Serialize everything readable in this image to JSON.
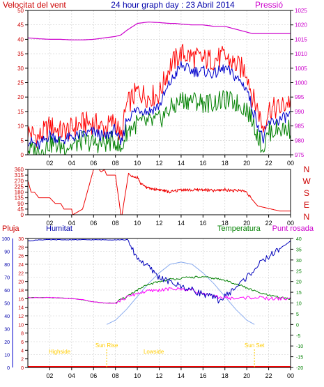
{
  "header": {
    "title": "24 hour graph day : 23 Abril 2014",
    "left_label": "Velocitat del vent",
    "right_label": "Pressió"
  },
  "colors": {
    "wind_gust": "#ff0000",
    "wind_avg": "#0000cc",
    "wind_low": "#008000",
    "pressure": "#cc00cc",
    "direction": "#ee0000",
    "humidity": "#0000bb",
    "temperature": "#008000",
    "dewpoint": "#ff00ff",
    "rain": "#ff0000",
    "solar": "#88aaee",
    "annot": "#ffcc00",
    "frame": "#000000",
    "grid": "#cccccc"
  },
  "chart_data": [
    {
      "type": "line",
      "title": "24 hour graph day : 23 Abril 2014",
      "ylabel": "Velocitat del vent",
      "ylabel_right": "Pressió",
      "x_ticks": [
        "02",
        "04",
        "06",
        "08",
        "10",
        "12",
        "14",
        "16",
        "18",
        "20",
        "22",
        "00"
      ],
      "ylim": [
        0,
        50
      ],
      "y_ticks": [
        0,
        5,
        10,
        15,
        20,
        25,
        30,
        35,
        40,
        45,
        50
      ],
      "ylim_right": [
        975,
        1025
      ],
      "y_ticks_right": [
        975,
        980,
        985,
        990,
        995,
        1000,
        1005,
        1010,
        1015,
        1020,
        1025
      ],
      "grid": true,
      "x_hours": [
        0,
        1,
        2,
        3,
        4,
        5,
        6,
        7,
        8,
        8.5,
        9,
        10,
        11,
        12,
        13,
        13.5,
        14,
        15,
        16,
        17,
        18,
        19,
        20,
        20.5,
        21,
        21.5,
        22,
        23,
        24
      ],
      "series": [
        {
          "key": "gust",
          "values": [
            8,
            6,
            10,
            8,
            9,
            11,
            11,
            9,
            12,
            5,
            17,
            22,
            20,
            21,
            31,
            33,
            35,
            34,
            33,
            33,
            34,
            31,
            29,
            20,
            16,
            9,
            16,
            16,
            19
          ]
        },
        {
          "key": "avg",
          "values": [
            5,
            3,
            7,
            5,
            6,
            7,
            8,
            6,
            9,
            3,
            12,
            16,
            15,
            17,
            25,
            28,
            31,
            29,
            29,
            28,
            30,
            27,
            23,
            16,
            11,
            5,
            11,
            12,
            14
          ]
        },
        {
          "key": "low",
          "values": [
            2,
            1,
            4,
            3,
            3,
            5,
            4,
            4,
            5,
            1,
            8,
            11,
            11,
            12,
            16,
            17,
            19,
            19,
            18,
            18,
            19,
            18,
            16,
            12,
            7,
            2,
            8,
            9,
            9
          ]
        },
        {
          "key": "pressure",
          "axis": "right",
          "values": [
            1015.5,
            1015.2,
            1015,
            1015,
            1014.8,
            1014.8,
            1015,
            1015.5,
            1016,
            1016.5,
            1018,
            1020.5,
            1021,
            1020.8,
            1020.5,
            1020.5,
            1020.3,
            1020,
            1020,
            1019.5,
            1019.5,
            1018.5,
            1017.5,
            1017,
            1017,
            1017,
            1017,
            1017,
            1017
          ]
        }
      ]
    },
    {
      "type": "line",
      "ylabel_right": "N W S E N",
      "ylim": [
        0,
        360
      ],
      "y_ticks": [
        0,
        45,
        90,
        135,
        180,
        225,
        270,
        315,
        360
      ],
      "x_hours": [
        0,
        0.3,
        0.6,
        1,
        2,
        2.5,
        3,
        3.3,
        4,
        4.1,
        5,
        6,
        6.5,
        6.7,
        7,
        7.2,
        8,
        8.5,
        8.6,
        9.2,
        9.5,
        10,
        10.3,
        11,
        12,
        13,
        14,
        15,
        16,
        17,
        18,
        19,
        19.5,
        20,
        20.5,
        21,
        22,
        23,
        24
      ],
      "values": [
        270,
        180,
        180,
        135,
        135,
        90,
        90,
        45,
        45,
        0,
        45,
        360,
        360,
        340,
        360,
        315,
        315,
        0,
        0,
        330,
        300,
        300,
        250,
        210,
        200,
        180,
        200,
        195,
        200,
        190,
        200,
        190,
        195,
        180,
        120,
        70,
        50,
        30,
        30
      ]
    },
    {
      "type": "line",
      "ylabel": "Pluja",
      "ylabel_2": "Humitat",
      "ylabel_3": "Temperatura",
      "ylabel_right": "Punt rosada",
      "ylim_humidity": [
        0,
        100
      ],
      "y_ticks_humidity": [
        0,
        10,
        20,
        30,
        40,
        50,
        60,
        70,
        80,
        90,
        100
      ],
      "ylim_rain": [
        0,
        30
      ],
      "y_ticks_rain": [
        0,
        2,
        4,
        6,
        8,
        10,
        12,
        14,
        16,
        18,
        20,
        22,
        24,
        26,
        28,
        30
      ],
      "ylim_right": [
        -20,
        40
      ],
      "y_ticks_right": [
        -20,
        -15,
        -10,
        -5,
        0,
        5,
        10,
        15,
        20,
        25,
        30,
        35,
        40
      ],
      "grid": true,
      "annotations": [
        {
          "text": "Sun Rise",
          "hour": 7.2
        },
        {
          "text": "Sun Set",
          "hour": 20.7
        },
        {
          "text": "Highside",
          "hour": 2.9
        },
        {
          "text": "Lowside",
          "hour": 11.5
        }
      ],
      "series": [
        {
          "key": "humidity",
          "x": [
            0,
            1,
            2,
            4,
            6,
            8,
            9,
            9.5,
            10,
            11,
            12,
            13,
            14,
            15,
            16,
            17,
            17.5,
            18,
            19,
            20,
            21,
            22,
            23,
            24
          ],
          "values": [
            98,
            99,
            99,
            99,
            99,
            99,
            99,
            92,
            85,
            78,
            70,
            66,
            63,
            60,
            57,
            54,
            52,
            55,
            62,
            70,
            79,
            86,
            92,
            98
          ]
        },
        {
          "key": "temperature",
          "x": [
            0,
            1,
            2,
            3,
            4,
            5,
            6,
            7,
            8,
            9,
            10,
            11,
            12,
            13,
            14,
            15,
            16,
            17,
            18,
            19,
            20,
            21,
            22,
            23,
            24
          ],
          "values": [
            12.5,
            12.5,
            12.5,
            12.3,
            12,
            11.5,
            10.5,
            10,
            10,
            13,
            16,
            18.5,
            20,
            21,
            21.5,
            22,
            22,
            21.5,
            20.5,
            19,
            17,
            15,
            13.5,
            12.5,
            12
          ]
        },
        {
          "key": "dewpoint",
          "x": [
            0,
            1,
            2,
            3,
            4,
            5,
            6,
            7,
            8,
            9,
            10,
            11,
            12,
            13,
            14,
            15,
            16,
            17,
            18,
            19,
            20,
            21,
            22,
            23,
            24
          ],
          "values": [
            12.5,
            12.5,
            12.5,
            12.3,
            12,
            11.5,
            10.5,
            10,
            10,
            12.5,
            14.5,
            15.5,
            16,
            16.5,
            16.5,
            16,
            14.5,
            13,
            12.5,
            12,
            12.5,
            12.5,
            12,
            12,
            12
          ]
        },
        {
          "key": "solar",
          "x": [
            7.2,
            8,
            9,
            10,
            11,
            12,
            13,
            14,
            15,
            16,
            17,
            18,
            19,
            20,
            20.7
          ],
          "values": [
            0,
            2,
            7,
            13,
            19,
            24,
            28,
            29,
            28,
            24,
            19,
            13,
            7,
            2,
            0
          ]
        }
      ]
    }
  ]
}
